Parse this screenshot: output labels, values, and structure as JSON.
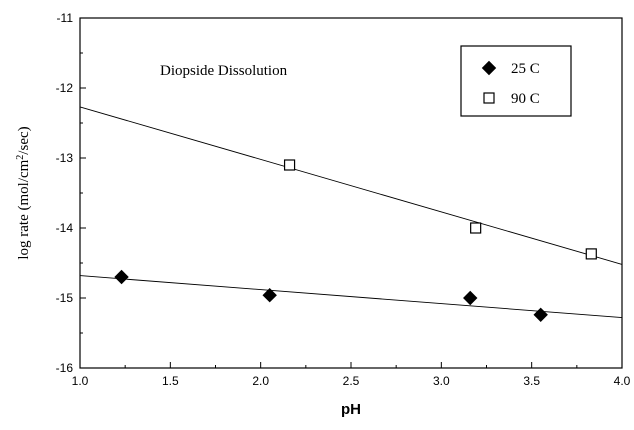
{
  "chart_data": {
    "type": "scatter",
    "title": "",
    "annotation": "Diopside Dissolution",
    "xlabel": "pH",
    "ylabel_main": "log rate (mol/cm",
    "ylabel_sup": "2",
    "ylabel_tail": "/sec)",
    "xlim": [
      1.0,
      4.0
    ],
    "ylim": [
      -16,
      -11
    ],
    "xticks": [
      "1.0",
      "1.5",
      "2.0",
      "2.5",
      "3.0",
      "3.5",
      "4.0"
    ],
    "yticks": [
      "-16",
      "-15",
      "-14",
      "-13",
      "-12",
      "-11"
    ],
    "grid": false,
    "legend_position": "top-right",
    "series": [
      {
        "name": "25 C",
        "marker": "filled-diamond",
        "color": "#000000",
        "x": [
          1.23,
          2.05,
          3.16,
          3.55
        ],
        "y": [
          -14.7,
          -14.96,
          -15.0,
          -15.24
        ],
        "fit": {
          "x": [
            1.0,
            4.0
          ],
          "y": [
            -14.68,
            -15.28
          ]
        }
      },
      {
        "name": "90 C",
        "marker": "open-square",
        "color": "#000000",
        "x": [
          2.16,
          3.19,
          3.83
        ],
        "y": [
          -13.1,
          -14.0,
          -14.37
        ],
        "fit": {
          "x": [
            1.0,
            4.0
          ],
          "y": [
            -12.27,
            -14.52
          ]
        }
      }
    ]
  }
}
